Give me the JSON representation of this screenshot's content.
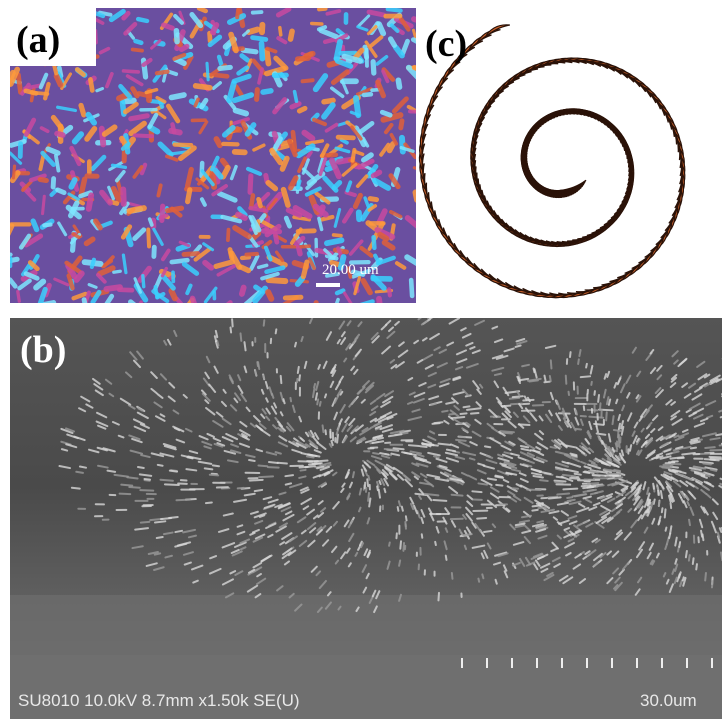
{
  "panels": {
    "a": {
      "label": "(a)",
      "scale_bar": "20.00 um"
    },
    "b": {
      "label": "(b)",
      "info": "SU8010 10.0kV 8.7mm x1.50k SE(U)",
      "scale_bar": "30.0um"
    },
    "c": {
      "label": "(c)"
    }
  }
}
